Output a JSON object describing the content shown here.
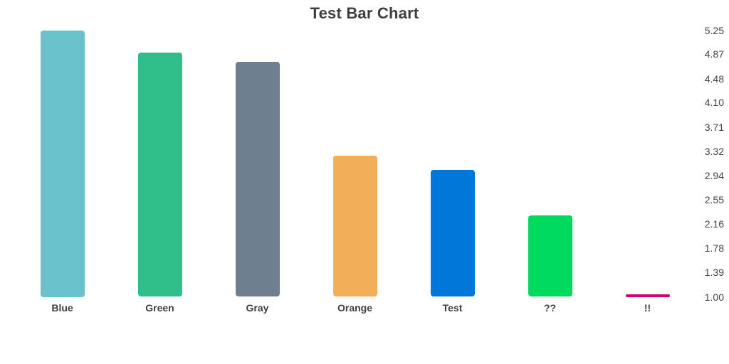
{
  "chart_data": {
    "type": "bar",
    "title": "Test Bar Chart",
    "categories": [
      "Blue",
      "Green",
      "Gray",
      "Orange",
      "Test",
      "??",
      "!!"
    ],
    "values": [
      5.25,
      4.9,
      4.75,
      3.25,
      3.03,
      2.3,
      1.0
    ],
    "bar_colors": [
      "#69C1CB",
      "#2DBE8A",
      "#6D7F8E",
      "#F2AE58",
      "#0077D9",
      "#00DA5E",
      "#D4006F"
    ],
    "xlabel": "",
    "ylabel": "",
    "ylim": [
      1.0,
      5.25
    ],
    "y_ticks": [
      "5.25",
      "4.87",
      "4.48",
      "4.10",
      "3.71",
      "3.32",
      "2.94",
      "2.55",
      "2.16",
      "1.78",
      "1.39",
      "1.00"
    ],
    "y_tick_side": "right",
    "grid": false,
    "legend": false,
    "background_color": "#FFFFFF",
    "title_color": "#3C4043",
    "tick_label_color": "#424242",
    "category_label_color": "#3F3F3F"
  }
}
